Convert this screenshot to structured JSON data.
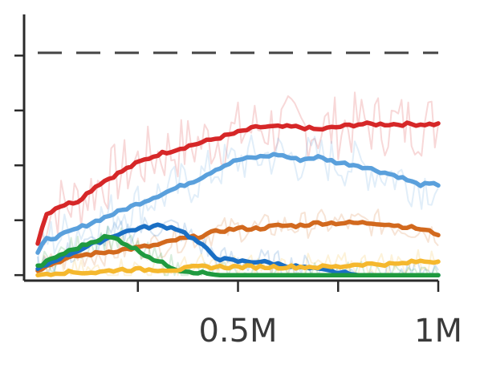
{
  "chart_data": {
    "type": "line",
    "x_ticks": [
      {
        "value": 250000,
        "label": ""
      },
      {
        "value": 500000,
        "label": "0.5M"
      },
      {
        "value": 750000,
        "label": ""
      },
      {
        "value": 1000000,
        "label": "1M"
      }
    ],
    "y_ticks": [
      0,
      0.2,
      0.4,
      0.6,
      0.8
    ],
    "xlim": [
      0,
      1000000
    ],
    "ylim": [
      -0.02,
      0.95
    ],
    "reference_line": {
      "y": 0.81,
      "style": "dashed",
      "color": "#444444"
    },
    "grid": false,
    "legend": "none",
    "series": [
      {
        "color": "#d62728",
        "x": [
          0,
          20000,
          50000,
          100000,
          150000,
          200000,
          250000,
          300000,
          350000,
          400000,
          450000,
          500000,
          550000,
          600000,
          650000,
          700000,
          750000,
          800000,
          850000,
          900000,
          950000,
          1000000
        ],
        "y": [
          0.12,
          0.22,
          0.25,
          0.27,
          0.33,
          0.37,
          0.41,
          0.44,
          0.46,
          0.48,
          0.5,
          0.52,
          0.54,
          0.54,
          0.54,
          0.53,
          0.54,
          0.55,
          0.55,
          0.55,
          0.55,
          0.55
        ]
      },
      {
        "color": "#5aa0dc",
        "x": [
          0,
          20000,
          50000,
          100000,
          150000,
          200000,
          250000,
          300000,
          350000,
          400000,
          450000,
          500000,
          550000,
          600000,
          650000,
          700000,
          750000,
          800000,
          850000,
          900000,
          950000,
          1000000
        ],
        "y": [
          0.08,
          0.13,
          0.14,
          0.17,
          0.2,
          0.23,
          0.26,
          0.29,
          0.32,
          0.35,
          0.39,
          0.42,
          0.43,
          0.44,
          0.42,
          0.43,
          0.41,
          0.4,
          0.38,
          0.36,
          0.33,
          0.33
        ]
      },
      {
        "color": "#d2691e",
        "x": [
          0,
          50000,
          100000,
          150000,
          200000,
          250000,
          300000,
          350000,
          400000,
          450000,
          500000,
          550000,
          600000,
          650000,
          700000,
          750000,
          800000,
          850000,
          900000,
          950000,
          1000000
        ],
        "y": [
          0.02,
          0.05,
          0.07,
          0.08,
          0.09,
          0.1,
          0.11,
          0.13,
          0.14,
          0.16,
          0.17,
          0.17,
          0.18,
          0.18,
          0.19,
          0.19,
          0.19,
          0.19,
          0.18,
          0.17,
          0.15
        ]
      },
      {
        "color": "#1a6fc4",
        "x": [
          0,
          50000,
          100000,
          150000,
          200000,
          250000,
          300000,
          350000,
          400000,
          450000,
          500000,
          550000,
          600000,
          650000,
          700000,
          750000,
          800000,
          850000,
          900000,
          950000,
          1000000
        ],
        "y": [
          0.02,
          0.06,
          0.09,
          0.12,
          0.15,
          0.17,
          0.18,
          0.17,
          0.12,
          0.06,
          0.05,
          0.05,
          0.04,
          0.03,
          0.02,
          0.01,
          0.0,
          0.0,
          0.0,
          0.0,
          0.0
        ]
      },
      {
        "color": "#1f9a3f",
        "x": [
          0,
          50000,
          100000,
          150000,
          170000,
          200000,
          250000,
          300000,
          350000,
          400000,
          450000,
          500000,
          600000,
          700000,
          800000,
          900000,
          1000000
        ],
        "y": [
          0.03,
          0.07,
          0.1,
          0.13,
          0.14,
          0.13,
          0.09,
          0.05,
          0.02,
          0.01,
          0.0,
          0.0,
          0.0,
          0.0,
          0.0,
          0.0,
          0.0
        ]
      },
      {
        "color": "#f5b82e",
        "x": [
          0,
          50000,
          100000,
          150000,
          200000,
          250000,
          300000,
          350000,
          400000,
          450000,
          500000,
          550000,
          600000,
          650000,
          700000,
          750000,
          800000,
          850000,
          900000,
          950000,
          1000000
        ],
        "y": [
          0.0,
          0.01,
          0.01,
          0.01,
          0.02,
          0.02,
          0.02,
          0.02,
          0.03,
          0.03,
          0.03,
          0.03,
          0.03,
          0.03,
          0.03,
          0.03,
          0.04,
          0.04,
          0.04,
          0.05,
          0.05
        ]
      }
    ]
  }
}
